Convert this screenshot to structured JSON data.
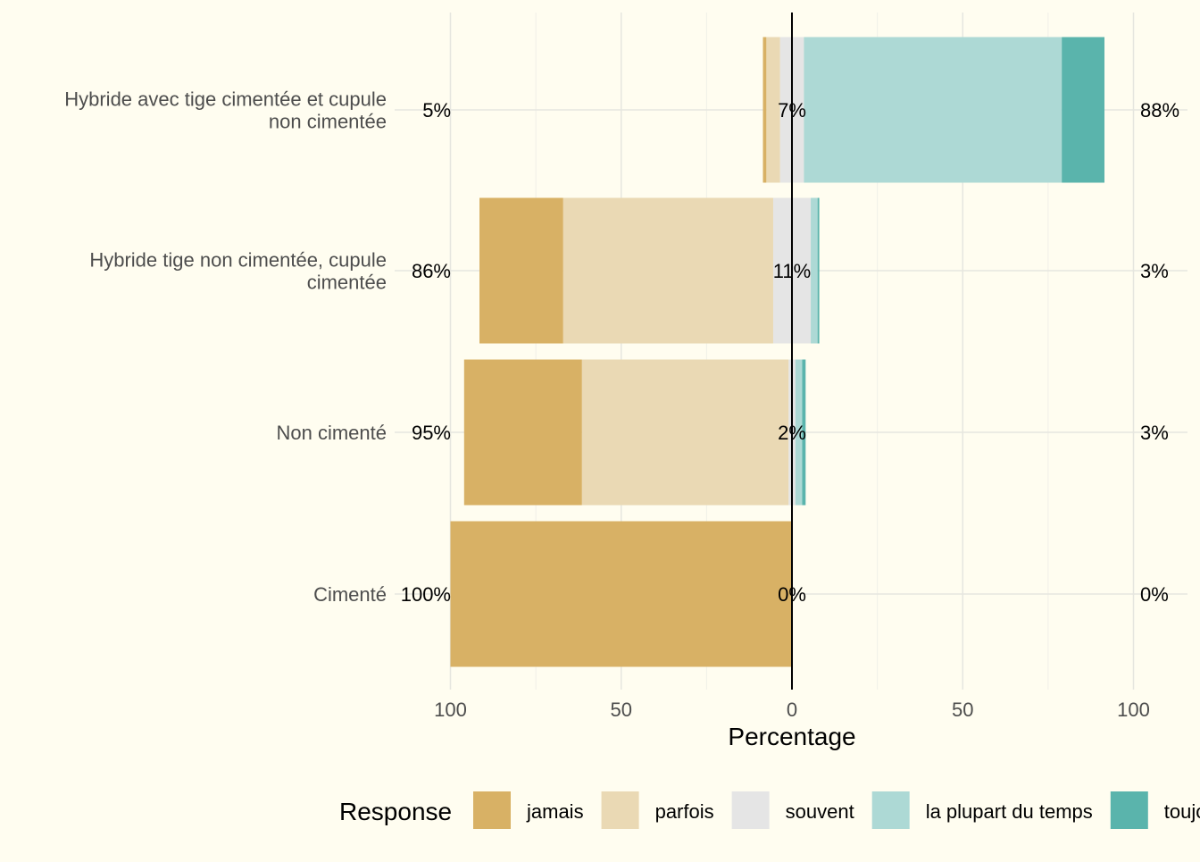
{
  "chart_data": {
    "type": "bar",
    "orientation": "horizontal",
    "stacking": "diverging",
    "xlabel": "Percentage",
    "xlim": [
      -100,
      100
    ],
    "x_ticks": [
      -100,
      -50,
      0,
      50,
      100
    ],
    "x_tick_labels": [
      "100",
      "50",
      "0",
      "50",
      "100"
    ],
    "grid": true,
    "legend": {
      "title": "Response",
      "position": "bottom"
    },
    "categories": [
      "Hybride avec tige cimentée et cupule non cimentée",
      "Hybride tige non cimentée, cupule cimentée",
      "Non cimenté",
      "Cimenté"
    ],
    "category_label_lines": [
      [
        "Hybride avec tige cimentée et cupule",
        "non cimentée"
      ],
      [
        "Hybride tige non cimentée, cupule",
        "cimentée"
      ],
      [
        "Non cimenté"
      ],
      [
        "Cimenté"
      ]
    ],
    "series": [
      {
        "name": "jamais",
        "color": "#D8B165",
        "values": [
          1,
          24.5,
          34.5,
          100
        ]
      },
      {
        "name": "parfois",
        "color": "#EAD9B4",
        "values": [
          4,
          61.5,
          60.5,
          0
        ]
      },
      {
        "name": "souvent",
        "color": "#E5E5E5",
        "values": [
          7,
          11,
          2,
          0
        ]
      },
      {
        "name": "la plupart du temps",
        "color": "#ADD9D5",
        "values": [
          75.5,
          2,
          2,
          0
        ]
      },
      {
        "name": "toujours",
        "color": "#5AB4AC",
        "values": [
          12.5,
          0.5,
          1,
          0
        ]
      }
    ],
    "left_labels": [
      "5%",
      "86%",
      "95%",
      "100%"
    ],
    "center_labels": [
      "7%",
      "11%",
      "2%",
      "0%"
    ],
    "right_labels": [
      "88%",
      "3%",
      "3%",
      "0%"
    ]
  },
  "colors": {
    "background": "#FFFDF0",
    "grid_major": "#E6E6DF",
    "grid_minor": "#F0F0E8",
    "zero_line": "#000000",
    "axis_text": "#4D4D4D",
    "label_text": "#000000"
  }
}
